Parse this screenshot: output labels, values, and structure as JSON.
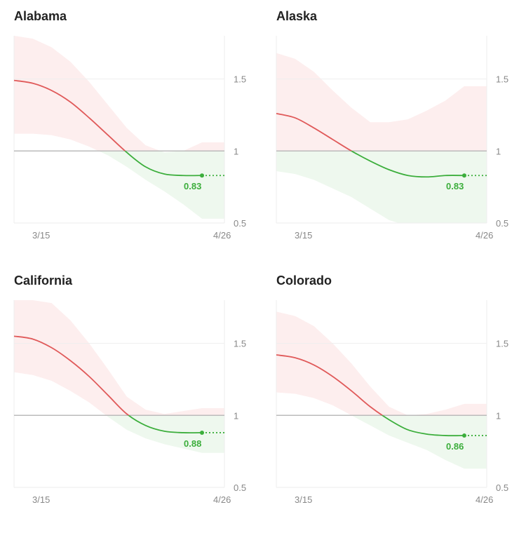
{
  "colors": {
    "red": "#e05a5a",
    "green": "#3cae3c",
    "red_band": "#fdeeee",
    "green_band": "#eef8ee",
    "axis_line": "#bbbbbb",
    "grid": "#eeeeee",
    "text": "#888888"
  },
  "chart_data": [
    {
      "type": "line",
      "title": "Alabama",
      "x_ticks": [
        "3/15",
        "4/26"
      ],
      "y_ticks": [
        "0.5",
        "1",
        "1.5"
      ],
      "ylim": [
        0.5,
        1.8
      ],
      "reference_line": 1,
      "last_value_label": "0.83",
      "series": [
        {
          "x": [
            0,
            0.1,
            0.2,
            0.3,
            0.4,
            0.5,
            0.6,
            0.7,
            0.8,
            0.9,
            1
          ],
          "values": [
            1.49,
            1.47,
            1.42,
            1.34,
            1.23,
            1.11,
            0.99,
            0.89,
            0.84,
            0.83,
            0.83
          ],
          "upper": [
            1.8,
            1.78,
            1.72,
            1.62,
            1.48,
            1.32,
            1.16,
            1.04,
            0.99,
            1.0,
            1.06
          ],
          "lower": [
            1.12,
            1.12,
            1.11,
            1.08,
            1.03,
            0.97,
            0.89,
            0.8,
            0.72,
            0.63,
            0.53
          ]
        }
      ]
    },
    {
      "type": "line",
      "title": "Alaska",
      "x_ticks": [
        "3/15",
        "4/26"
      ],
      "y_ticks": [
        "0.5",
        "1",
        "1.5"
      ],
      "ylim": [
        0.5,
        1.8
      ],
      "reference_line": 1,
      "last_value_label": "0.83",
      "series": [
        {
          "x": [
            0,
            0.1,
            0.2,
            0.3,
            0.4,
            0.5,
            0.6,
            0.7,
            0.8,
            0.9,
            1
          ],
          "values": [
            1.26,
            1.23,
            1.16,
            1.08,
            1.0,
            0.93,
            0.87,
            0.83,
            0.82,
            0.83,
            0.83
          ],
          "upper": [
            1.68,
            1.64,
            1.55,
            1.42,
            1.3,
            1.2,
            1.2,
            1.22,
            1.28,
            1.35,
            1.45
          ],
          "lower": [
            0.86,
            0.84,
            0.8,
            0.74,
            0.68,
            0.6,
            0.52,
            0.48,
            0.46,
            0.45,
            0.44
          ]
        }
      ]
    },
    {
      "type": "line",
      "title": "California",
      "x_ticks": [
        "3/15",
        "4/26"
      ],
      "y_ticks": [
        "0.5",
        "1",
        "1.5"
      ],
      "ylim": [
        0.5,
        1.8
      ],
      "reference_line": 1,
      "last_value_label": "0.88",
      "series": [
        {
          "x": [
            0,
            0.1,
            0.2,
            0.3,
            0.4,
            0.5,
            0.6,
            0.7,
            0.8,
            0.9,
            1
          ],
          "values": [
            1.55,
            1.53,
            1.47,
            1.38,
            1.27,
            1.14,
            1.01,
            0.93,
            0.89,
            0.88,
            0.88
          ],
          "upper": [
            1.8,
            1.8,
            1.78,
            1.66,
            1.5,
            1.32,
            1.13,
            1.04,
            1.01,
            1.03,
            1.05
          ],
          "lower": [
            1.3,
            1.28,
            1.24,
            1.17,
            1.09,
            0.99,
            0.9,
            0.84,
            0.8,
            0.77,
            0.74
          ]
        }
      ]
    },
    {
      "type": "line",
      "title": "Colorado",
      "x_ticks": [
        "3/15",
        "4/26"
      ],
      "y_ticks": [
        "0.5",
        "1",
        "1.5"
      ],
      "ylim": [
        0.5,
        1.8
      ],
      "reference_line": 1,
      "last_value_label": "0.86",
      "series": [
        {
          "x": [
            0,
            0.1,
            0.2,
            0.3,
            0.4,
            0.5,
            0.6,
            0.7,
            0.8,
            0.9,
            1
          ],
          "values": [
            1.42,
            1.4,
            1.35,
            1.27,
            1.17,
            1.06,
            0.97,
            0.9,
            0.87,
            0.86,
            0.86
          ],
          "upper": [
            1.72,
            1.69,
            1.62,
            1.5,
            1.36,
            1.2,
            1.06,
            1.0,
            1.01,
            1.04,
            1.08
          ],
          "lower": [
            1.16,
            1.15,
            1.12,
            1.07,
            1.0,
            0.93,
            0.86,
            0.81,
            0.76,
            0.69,
            0.63
          ]
        }
      ]
    }
  ]
}
